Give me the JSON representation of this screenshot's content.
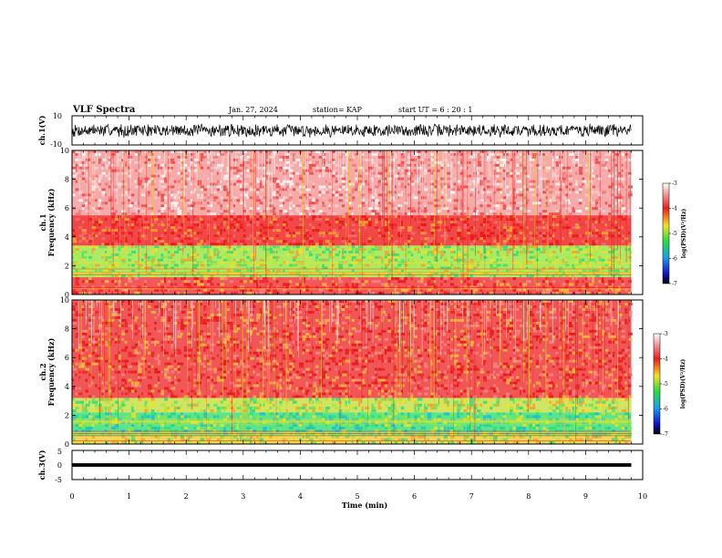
{
  "header": {
    "title": "VLF Spectra",
    "date": "Jan. 27, 2024",
    "station": "station= KAP",
    "start_ut": "start  UT =   6  : 20 : 1"
  },
  "chart_data": [
    {
      "type": "line",
      "panel": "ch1-waveform",
      "ylabel": "ch.1(V)",
      "ylim": [
        -10,
        10
      ],
      "yticks": [
        "10",
        "-10"
      ],
      "xlim": [
        0,
        10
      ],
      "data_extent_min": [
        0,
        9.8
      ],
      "description_of_values": "dense black noise envelope",
      "envelope_min": -5,
      "envelope_max": 5,
      "color": "#000000"
    },
    {
      "type": "heatmap",
      "panel": "ch1-spectrogram",
      "ylabel": "ch.1\nFrequency (kHz)",
      "ylabel_line1": "ch.1",
      "ylabel_line2": "Frequency (kHz)",
      "ylim": [
        0,
        10
      ],
      "yticks": [
        "0",
        "2",
        "4",
        "6",
        "8",
        "10"
      ],
      "xlim": [
        0,
        10
      ],
      "data_extent_min": [
        0,
        9.8
      ],
      "bands": [
        {
          "f_low": 0,
          "f_high": 1.2,
          "level": "high",
          "dominant_color": "#f03c3c"
        },
        {
          "f_low": 1.2,
          "f_high": 3.4,
          "level": "mid",
          "dominant_color": "#9ee84a"
        },
        {
          "f_low": 3.4,
          "f_high": 5.5,
          "level": "mid-high",
          "dominant_color": "#f02828"
        },
        {
          "f_low": 5.5,
          "f_high": 10,
          "level": "high-sparse",
          "dominant_color": "#f59a9a"
        }
      ],
      "colorbar": {
        "label": "log(PSD)(V²/Hz)",
        "range": [
          -7,
          -3
        ],
        "ticks": [
          "-3",
          "-4",
          "-5",
          "-6",
          "-7"
        ]
      }
    },
    {
      "type": "heatmap",
      "panel": "ch2-spectrogram",
      "ylabel_line1": "ch.2",
      "ylabel_line2": "Frequency (kHz)",
      "ylim": [
        0,
        10
      ],
      "yticks": [
        "0",
        "2",
        "4",
        "6",
        "8",
        "10"
      ],
      "xlim": [
        0,
        10
      ],
      "data_extent_min": [
        0,
        9.8
      ],
      "bands": [
        {
          "f_low": 0,
          "f_high": 0.6,
          "level": "mid",
          "dominant_color": "#f0d040"
        },
        {
          "f_low": 0.6,
          "f_high": 2.2,
          "level": "low",
          "dominant_color": "#3ce07a"
        },
        {
          "f_low": 2.2,
          "f_high": 3.2,
          "level": "mid",
          "dominant_color": "#c8e048"
        },
        {
          "f_low": 3.2,
          "f_high": 10,
          "level": "high",
          "dominant_color": "#ee3a3a"
        }
      ],
      "colorbar": {
        "label": "log(PSD)(V²/Hz)",
        "range": [
          -7,
          -3
        ],
        "ticks": [
          "-3",
          "-4",
          "-5",
          "-6",
          "-7"
        ]
      }
    },
    {
      "type": "line",
      "panel": "ch3-waveform",
      "ylabel": "ch.3(V)",
      "ylim": [
        -5,
        5
      ],
      "yticks": [
        "5",
        "0",
        "-5"
      ],
      "xlim": [
        0,
        10
      ],
      "data_extent_min": [
        0,
        9.8
      ],
      "envelope_min": -0.6,
      "envelope_max": 0.6,
      "color": "#000000"
    }
  ],
  "x_axis": {
    "label": "Time  (min)",
    "ticks": [
      "0",
      "1",
      "2",
      "3",
      "4",
      "5",
      "6",
      "7",
      "8",
      "9",
      "10"
    ],
    "range": [
      0,
      10
    ]
  }
}
